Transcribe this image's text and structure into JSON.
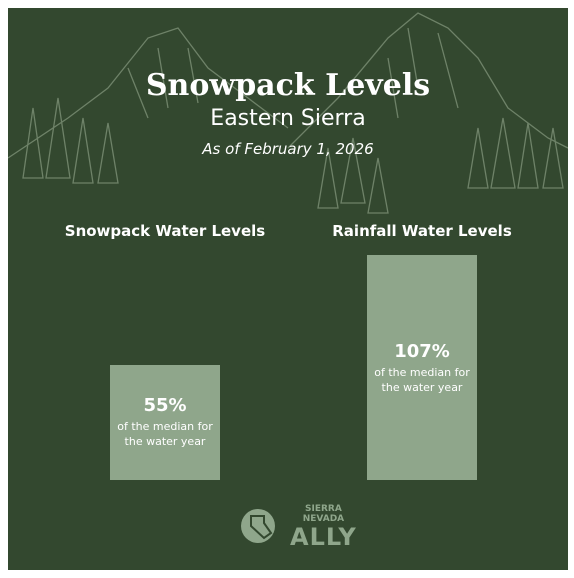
{
  "header": {
    "title": "Snowpack Levels",
    "subtitle": "Eastern Sierra",
    "date": "As of February 1, 2026"
  },
  "chart_data": [
    {
      "type": "bar",
      "title": "Snowpack Water Levels",
      "values": [
        55
      ],
      "value_labels": [
        "55%"
      ],
      "annotation": "of the median for the water year",
      "color": "#8fa68b"
    },
    {
      "type": "bar",
      "title": "Rainfall Water Levels",
      "values": [
        107
      ],
      "value_labels": [
        "107%"
      ],
      "annotation": "of the median for the water year",
      "color": "#8fa68b"
    }
  ],
  "logo": {
    "lines": [
      "SIERRA",
      "NEVADA",
      "ALLY"
    ]
  }
}
